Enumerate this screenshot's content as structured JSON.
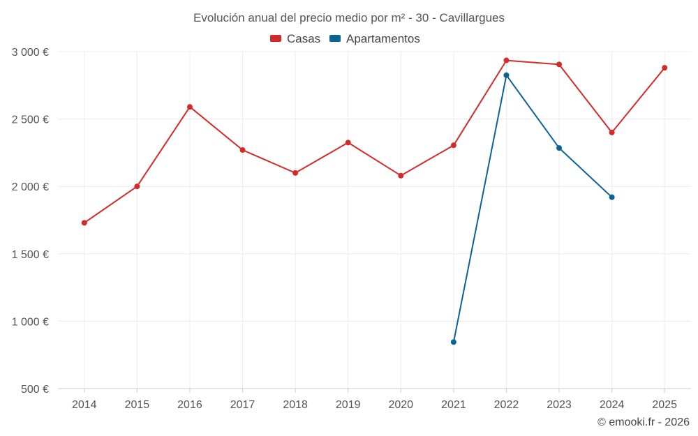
{
  "chart_data": {
    "type": "line",
    "title": "Evolución anual del precio medio por m² - 30 - Cavillargues",
    "x": [
      "2014",
      "2015",
      "2016",
      "2017",
      "2018",
      "2019",
      "2020",
      "2021",
      "2022",
      "2023",
      "2024",
      "2025"
    ],
    "ylim": [
      500,
      3000
    ],
    "yticks": [
      500,
      1000,
      1500,
      2000,
      2500,
      3000
    ],
    "ytick_labels": [
      "500 €",
      "1 000 €",
      "1 500 €",
      "2 000 €",
      "2 500 €",
      "3 000 €"
    ],
    "grid": true,
    "legend_position": "top-center",
    "series": [
      {
        "name": "Casas",
        "color": "#d32a2a",
        "values": [
          1730,
          2000,
          2590,
          2270,
          2100,
          2325,
          2080,
          2305,
          2935,
          2905,
          2400,
          2880
        ]
      },
      {
        "name": "Apartamentos",
        "color": "#0b6394",
        "values": [
          null,
          null,
          null,
          null,
          null,
          null,
          null,
          845,
          2825,
          2285,
          1920,
          null
        ]
      }
    ]
  },
  "credit": "© emooki.fr - 2026"
}
